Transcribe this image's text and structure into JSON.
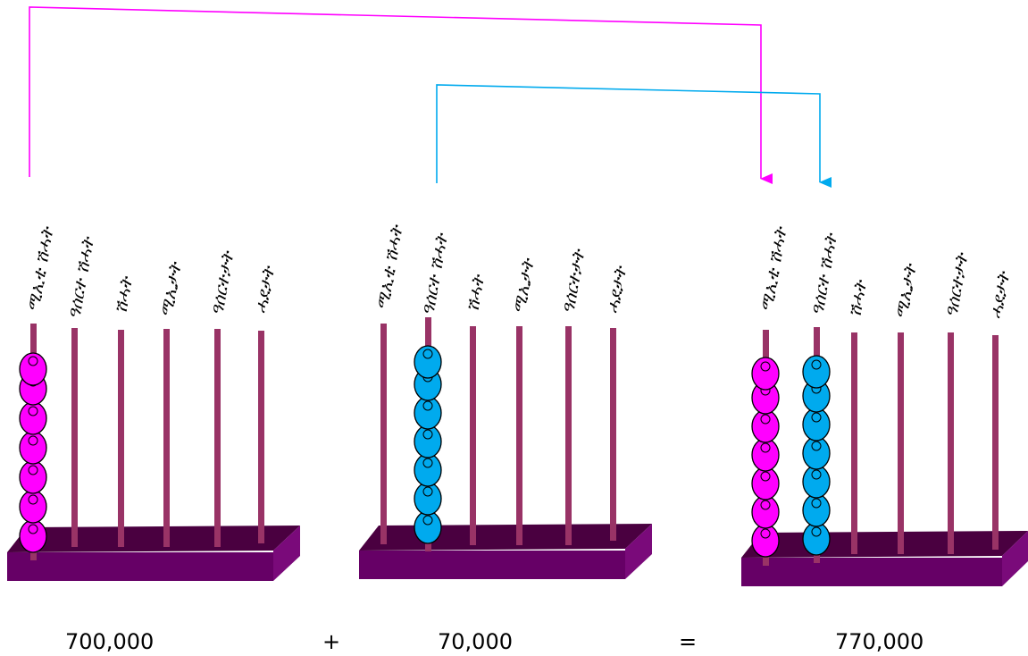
{
  "colors": {
    "magenta": "#ff00ff",
    "cyan": "#00aaee",
    "rod": "#993366",
    "base_top": "#4a0040",
    "base_front": "#660066",
    "base_side": "#7a0a7a"
  },
  "abacuses": [
    {
      "labels": [
        "ሚኢቲ ሽሓት",
        "ዓሰርተ ሽሓት",
        "ሽሓት",
        "ሚኢታት",
        "ዓሰርተታት",
        "ሓደታት"
      ],
      "beads": [
        7,
        0,
        0,
        0,
        0,
        0
      ]
    },
    {
      "labels": [
        "ሚኢቲ ሽሓት",
        "ዓሰርተ ሽሓት",
        "ሽሓት",
        "ሚኢታት",
        "ዓሰርተታት",
        "ሓደታት"
      ],
      "beads": [
        0,
        7,
        0,
        0,
        0,
        0
      ]
    },
    {
      "labels": [
        "ሚኢቲ ሽሓት",
        "ዓሰርተ ሽሓት",
        "ሽሓት",
        "ሚኢታት",
        "ዓሰርተታት",
        "ሓደታት"
      ],
      "beads": [
        7,
        7,
        0,
        0,
        0,
        0
      ]
    }
  ],
  "equation": {
    "term1": "700,000",
    "op_plus": "+",
    "term2": "70,000",
    "op_equals": "=",
    "result": "770,000"
  }
}
